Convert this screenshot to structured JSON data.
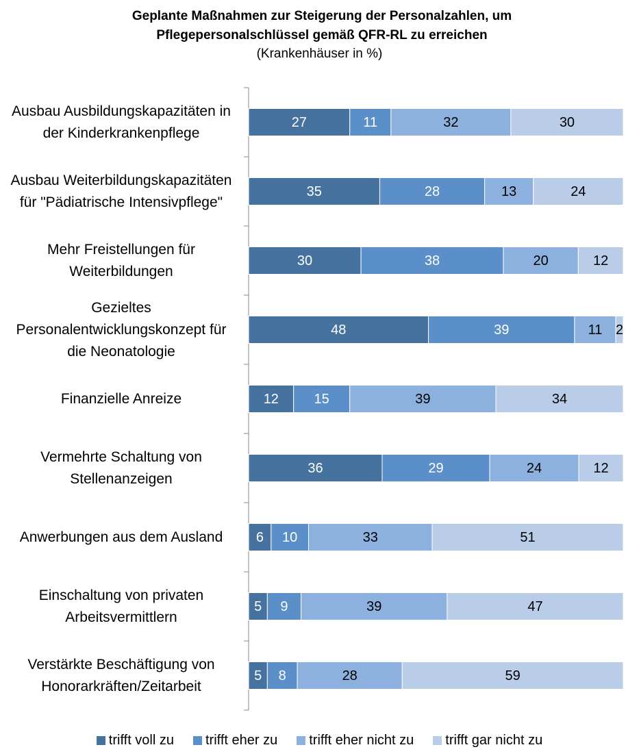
{
  "chart_data": {
    "type": "stacked_barh",
    "stacking": "percent",
    "title": "Geplante Maßnahmen zur Steigerung der Personalzahlen, um Pflegepersonalschlüssel gemäß QFR-RL zu erreichen",
    "subtitle": "(Krankenhäuser in %)",
    "categories": [
      "Ausbau Ausbildungskapazitäten in der Kinderkrankenpflege",
      "Ausbau Weiterbildungskapazitäten für \"Pädiatrische Intensivpflege\"",
      "Mehr Freistellungen für Weiterbildungen",
      "Gezieltes Personalentwicklungskonzept für die Neonatologie",
      "Finanzielle Anreize",
      "Vermehrte Schaltung von Stellenanzeigen",
      "Anwerbungen aus dem Ausland",
      "Einschaltung von privaten Arbeitsvermittlern",
      "Verstärkte Beschäftigung von Honorarkräften/Zeitarbeit"
    ],
    "series": [
      {
        "name": "trifft voll zu",
        "color": "#45729f",
        "values": [
          27,
          35,
          30,
          48,
          12,
          36,
          6,
          5,
          5
        ]
      },
      {
        "name": "trifft eher zu",
        "color": "#5a8fc9",
        "values": [
          11,
          28,
          38,
          39,
          15,
          29,
          10,
          9,
          8
        ]
      },
      {
        "name": "trifft eher nicht zu",
        "color": "#8db1de",
        "values": [
          32,
          13,
          20,
          11,
          39,
          24,
          33,
          39,
          28
        ]
      },
      {
        "name": "trifft gar nicht zu",
        "color": "#b9cde9",
        "values": [
          30,
          24,
          12,
          2,
          34,
          12,
          51,
          47,
          59
        ]
      }
    ],
    "legend": "bottom"
  }
}
